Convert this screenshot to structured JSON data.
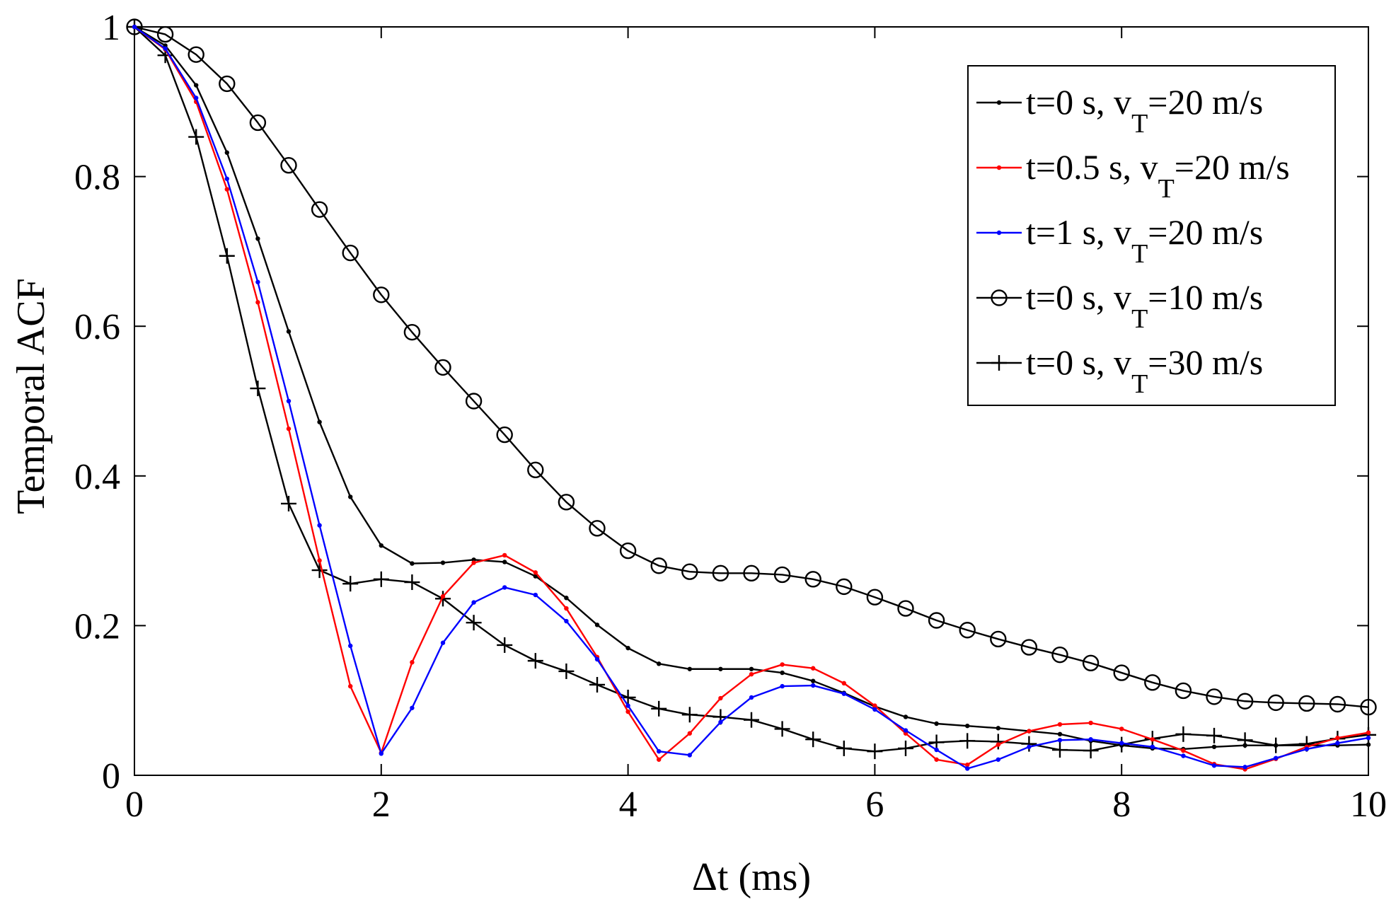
{
  "chart_data": {
    "type": "line",
    "title": "",
    "xlabel": "Δt (ms)",
    "ylabel": "Temporal ACF",
    "xlim": [
      0,
      10
    ],
    "ylim": [
      0,
      1
    ],
    "xticks": [
      "0",
      "2",
      "4",
      "6",
      "8",
      "10"
    ],
    "yticks": [
      "0",
      "0.2",
      "0.4",
      "0.6",
      "0.8",
      "1"
    ],
    "grid": false,
    "legend_position": "top-right",
    "x": [
      0,
      0.25,
      0.5,
      0.75,
      1,
      1.25,
      1.5,
      1.75,
      2,
      2.25,
      2.5,
      2.75,
      3,
      3.25,
      3.5,
      3.75,
      4,
      4.25,
      4.5,
      4.75,
      5,
      5.25,
      5.5,
      5.75,
      6,
      6.25,
      6.5,
      6.75,
      7,
      7.25,
      7.5,
      7.75,
      8,
      8.25,
      8.5,
      8.75,
      9,
      9.25,
      9.5,
      9.75,
      10
    ],
    "series": [
      {
        "name": "t=0 s, v_T=20 m/s",
        "label_main": "t=0 s, v",
        "label_sub": "T",
        "label_tail": "=20 m/s",
        "color": "#000000",
        "marker": "dot",
        "values": [
          1.0,
          0.975,
          0.922,
          0.832,
          0.717,
          0.593,
          0.472,
          0.372,
          0.307,
          0.283,
          0.284,
          0.288,
          0.285,
          0.266,
          0.237,
          0.201,
          0.17,
          0.149,
          0.142,
          0.142,
          0.142,
          0.137,
          0.126,
          0.11,
          0.092,
          0.078,
          0.069,
          0.066,
          0.063,
          0.059,
          0.055,
          0.046,
          0.04,
          0.036,
          0.035,
          0.038,
          0.04,
          0.04,
          0.04,
          0.04,
          0.041
        ]
      },
      {
        "name": "t=0.5 s, v_T=20 m/s",
        "label_main": "t=0.5 s, v",
        "label_sub": "T",
        "label_tail": "=20 m/s",
        "color": "#ff0000",
        "marker": "dot",
        "values": [
          1.0,
          0.97,
          0.9,
          0.783,
          0.632,
          0.463,
          0.287,
          0.119,
          0.03,
          0.151,
          0.239,
          0.284,
          0.294,
          0.271,
          0.223,
          0.158,
          0.085,
          0.021,
          0.056,
          0.103,
          0.135,
          0.148,
          0.143,
          0.123,
          0.093,
          0.056,
          0.021,
          0.014,
          0.041,
          0.059,
          0.068,
          0.07,
          0.062,
          0.048,
          0.033,
          0.015,
          0.008,
          0.022,
          0.038,
          0.05,
          0.057
        ]
      },
      {
        "name": "t=1 s, v_T=20 m/s",
        "label_main": "t=1 s, v",
        "label_sub": "T",
        "label_tail": "=20 m/s",
        "color": "#0000ff",
        "marker": "dot",
        "values": [
          1.0,
          0.971,
          0.905,
          0.797,
          0.659,
          0.5,
          0.334,
          0.173,
          0.029,
          0.09,
          0.177,
          0.231,
          0.251,
          0.241,
          0.206,
          0.155,
          0.093,
          0.032,
          0.027,
          0.071,
          0.104,
          0.119,
          0.12,
          0.109,
          0.088,
          0.06,
          0.034,
          0.009,
          0.021,
          0.038,
          0.047,
          0.048,
          0.043,
          0.038,
          0.026,
          0.013,
          0.011,
          0.023,
          0.035,
          0.043,
          0.05
        ]
      },
      {
        "name": "t=0 s, v_T=10 m/s",
        "label_main": "t=0 s, v",
        "label_sub": "T",
        "label_tail": "=10 m/s",
        "color": "#000000",
        "marker": "circle",
        "values": [
          1.0,
          0.99,
          0.963,
          0.924,
          0.872,
          0.815,
          0.756,
          0.698,
          0.642,
          0.592,
          0.545,
          0.5,
          0.455,
          0.408,
          0.365,
          0.33,
          0.3,
          0.28,
          0.272,
          0.27,
          0.27,
          0.268,
          0.262,
          0.252,
          0.238,
          0.223,
          0.207,
          0.194,
          0.182,
          0.171,
          0.161,
          0.15,
          0.137,
          0.124,
          0.113,
          0.105,
          0.099,
          0.097,
          0.096,
          0.095,
          0.091
        ]
      },
      {
        "name": "t=0 s, v_T=30 m/s",
        "label_main": "t=0 s, v",
        "label_sub": "T",
        "label_tail": "=30 m/s",
        "color": "#000000",
        "marker": "plus",
        "values": [
          1.0,
          0.962,
          0.853,
          0.694,
          0.517,
          0.363,
          0.274,
          0.256,
          0.262,
          0.258,
          0.236,
          0.204,
          0.174,
          0.153,
          0.139,
          0.121,
          0.104,
          0.089,
          0.081,
          0.078,
          0.074,
          0.062,
          0.048,
          0.036,
          0.032,
          0.036,
          0.044,
          0.046,
          0.045,
          0.042,
          0.034,
          0.033,
          0.041,
          0.049,
          0.055,
          0.053,
          0.047,
          0.04,
          0.042,
          0.049,
          0.054
        ]
      }
    ]
  }
}
